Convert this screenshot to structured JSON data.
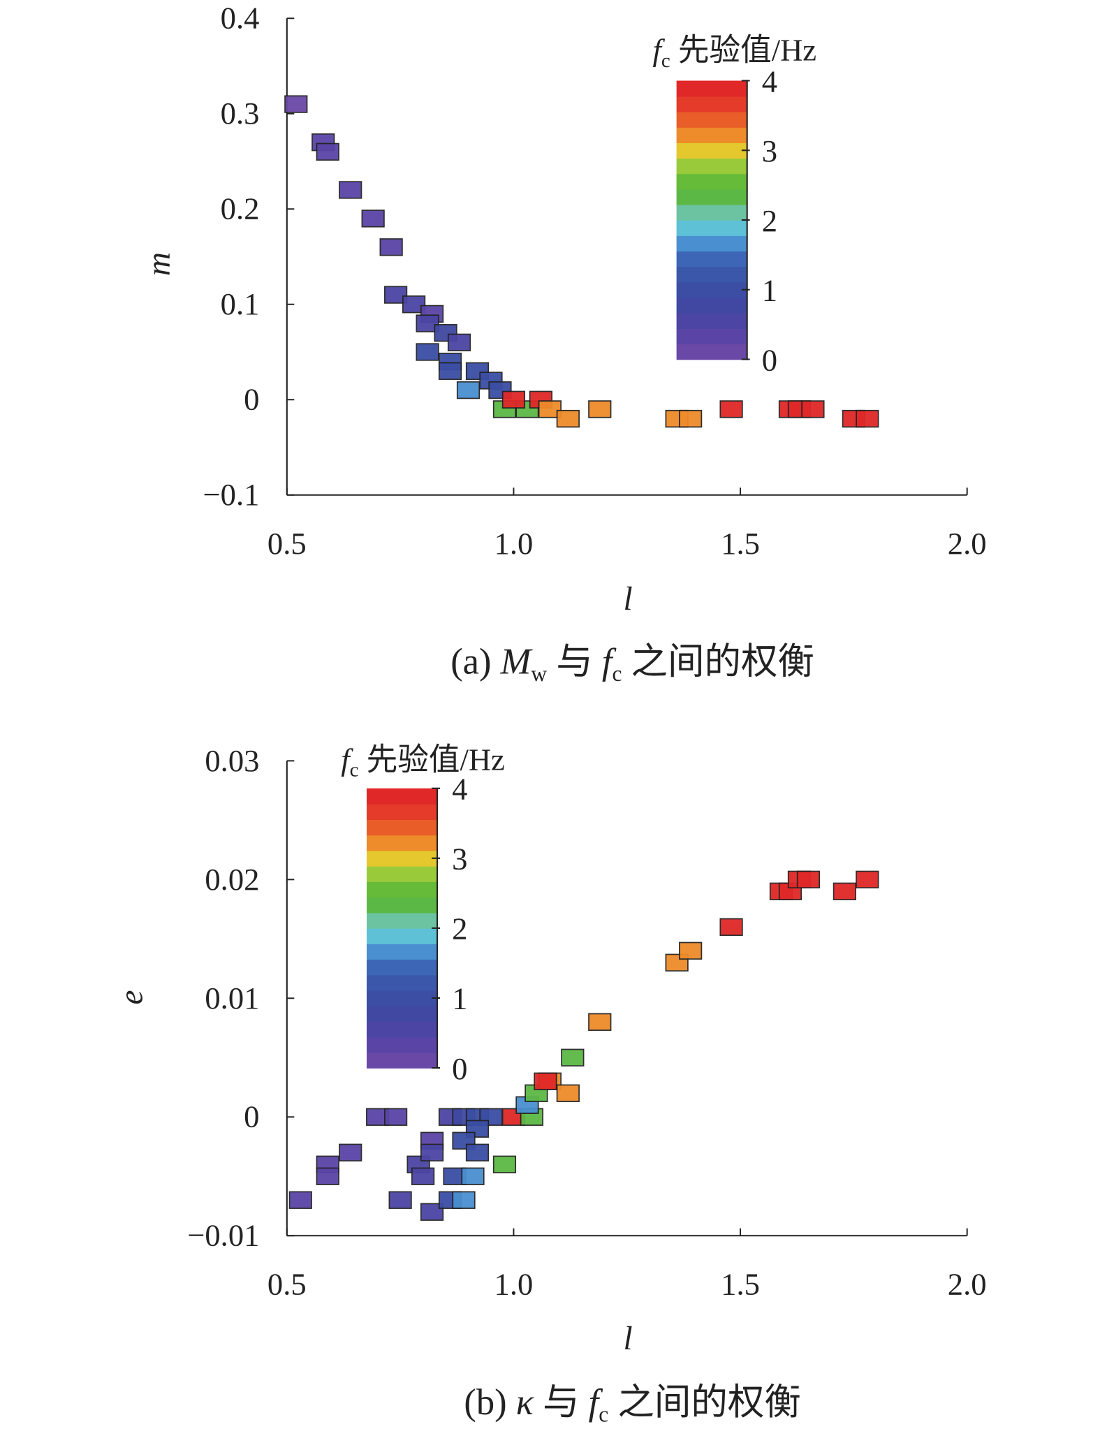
{
  "colorbar_colors": [
    "#6a48a6",
    "#5a45a6",
    "#4c45a4",
    "#4048a1",
    "#3b4ea4",
    "#3a57aa",
    "#3d66b6",
    "#4a8fd0",
    "#5ec1d6",
    "#6cc3a2",
    "#5cb845",
    "#66bb38",
    "#98ca3a",
    "#e4c82d",
    "#ee8b2a",
    "#e85d28",
    "#e43b2a",
    "#e02828"
  ],
  "chart_data": [
    {
      "type": "scatter",
      "panel": "a",
      "caption": {
        "prefix": "(a) ",
        "var1": "M",
        "var1_sub": "w",
        "mid": " 与 ",
        "var2": "f",
        "var2_sub": "c",
        "suffix": " 之间的权衡"
      },
      "xlabel": "l",
      "ylabel": "m",
      "xlim": [
        0.5,
        2.0
      ],
      "ylim": [
        -0.1,
        0.4
      ],
      "xticks": [
        "0.5",
        "1.0",
        "1.5",
        "2.0"
      ],
      "xtick_values": [
        0.5,
        1.0,
        1.5,
        2.0
      ],
      "yticks": [
        "−0.1",
        "0",
        "0.1",
        "0.2",
        "0.3",
        "0.4"
      ],
      "ytick_values": [
        -0.1,
        0,
        0.1,
        0.2,
        0.3,
        0.4
      ],
      "colorbar": {
        "title_var": "f",
        "title_sub": "c",
        "title_text": " 先验值/Hz",
        "ticks": [
          "0",
          "1",
          "2",
          "3",
          "4"
        ],
        "tick_values": [
          0,
          1,
          2,
          3,
          4
        ],
        "range": [
          0,
          4
        ],
        "position": "top-right"
      },
      "points_l_y_fc": [
        [
          0.52,
          0.31,
          0.2
        ],
        [
          0.58,
          0.27,
          0.3
        ],
        [
          0.59,
          0.26,
          0.3
        ],
        [
          0.64,
          0.22,
          0.3
        ],
        [
          0.69,
          0.19,
          0.3
        ],
        [
          0.73,
          0.16,
          0.3
        ],
        [
          0.74,
          0.11,
          0.5
        ],
        [
          0.78,
          0.1,
          0.6
        ],
        [
          0.82,
          0.09,
          0.4
        ],
        [
          0.81,
          0.08,
          0.6
        ],
        [
          0.85,
          0.07,
          0.7
        ],
        [
          0.88,
          0.06,
          0.5
        ],
        [
          0.81,
          0.05,
          0.9
        ],
        [
          0.86,
          0.04,
          0.9
        ],
        [
          0.86,
          0.03,
          1.1
        ],
        [
          0.92,
          0.03,
          0.9
        ],
        [
          0.95,
          0.02,
          1.0
        ],
        [
          0.9,
          0.01,
          1.7
        ],
        [
          0.97,
          0.01,
          1.0
        ],
        [
          0.98,
          -0.01,
          2.4
        ],
        [
          1.03,
          -0.01,
          2.4
        ],
        [
          1.0,
          0.0,
          3.9
        ],
        [
          1.06,
          0.0,
          3.9
        ],
        [
          1.08,
          -0.01,
          3.2
        ],
        [
          1.12,
          -0.02,
          3.2
        ],
        [
          1.19,
          -0.01,
          3.3
        ],
        [
          1.36,
          -0.02,
          3.3
        ],
        [
          1.39,
          -0.02,
          3.3
        ],
        [
          1.48,
          -0.01,
          3.9
        ],
        [
          1.61,
          -0.01,
          3.9
        ],
        [
          1.63,
          -0.01,
          3.9
        ],
        [
          1.66,
          -0.01,
          3.9
        ],
        [
          1.75,
          -0.02,
          3.9
        ],
        [
          1.78,
          -0.02,
          3.9
        ]
      ]
    },
    {
      "type": "scatter",
      "panel": "b",
      "caption": {
        "prefix": "(b) ",
        "var1": "κ",
        "var1_sub": "",
        "mid": " 与 ",
        "var2": "f",
        "var2_sub": "c",
        "suffix": " 之间的权衡"
      },
      "xlabel": "l",
      "ylabel": "e",
      "xlim": [
        0.5,
        2.0
      ],
      "ylim": [
        -0.01,
        0.03
      ],
      "xticks": [
        "0.5",
        "1.0",
        "1.5",
        "2.0"
      ],
      "xtick_values": [
        0.5,
        1.0,
        1.5,
        2.0
      ],
      "yticks": [
        "−0.01",
        "0",
        "0.01",
        "0.02",
        "0.03"
      ],
      "ytick_values": [
        -0.01,
        0,
        0.01,
        0.02,
        0.03
      ],
      "colorbar": {
        "title_var": "f",
        "title_sub": "c",
        "title_text": " 先验值/Hz",
        "ticks": [
          "0",
          "1",
          "2",
          "3",
          "4"
        ],
        "tick_values": [
          0,
          1,
          2,
          3,
          4
        ],
        "range": [
          0,
          4
        ],
        "position": "top-left"
      },
      "points_l_y_fc": [
        [
          0.53,
          -0.007,
          0.3
        ],
        [
          0.59,
          -0.004,
          0.3
        ],
        [
          0.59,
          -0.005,
          0.3
        ],
        [
          0.64,
          -0.003,
          0.3
        ],
        [
          0.7,
          0.0,
          0.3
        ],
        [
          0.74,
          0.0,
          0.3
        ],
        [
          0.75,
          -0.007,
          0.5
        ],
        [
          0.79,
          -0.004,
          0.5
        ],
        [
          0.8,
          -0.005,
          0.6
        ],
        [
          0.82,
          -0.008,
          0.5
        ],
        [
          0.82,
          -0.002,
          0.4
        ],
        [
          0.82,
          -0.003,
          0.6
        ],
        [
          0.86,
          0.0,
          0.6
        ],
        [
          0.89,
          0.0,
          0.8
        ],
        [
          0.92,
          0.0,
          1.0
        ],
        [
          0.95,
          0.0,
          1.1
        ],
        [
          0.92,
          -0.001,
          1.0
        ],
        [
          0.89,
          -0.002,
          0.9
        ],
        [
          0.92,
          -0.003,
          1.1
        ],
        [
          0.87,
          -0.005,
          1.1
        ],
        [
          0.91,
          -0.005,
          1.7
        ],
        [
          0.86,
          -0.007,
          1.1
        ],
        [
          0.89,
          -0.007,
          1.7
        ],
        [
          0.98,
          -0.004,
          2.4
        ],
        [
          1.0,
          0.0,
          3.9
        ],
        [
          1.04,
          0.0,
          2.4
        ],
        [
          1.03,
          0.001,
          1.7
        ],
        [
          1.05,
          0.002,
          2.4
        ],
        [
          1.08,
          0.003,
          3.3
        ],
        [
          1.07,
          0.003,
          3.9
        ],
        [
          1.12,
          0.002,
          3.3
        ],
        [
          1.13,
          0.005,
          2.4
        ],
        [
          1.19,
          0.008,
          3.3
        ],
        [
          1.36,
          0.013,
          3.3
        ],
        [
          1.39,
          0.014,
          3.3
        ],
        [
          1.48,
          0.016,
          3.9
        ],
        [
          1.59,
          0.019,
          3.9
        ],
        [
          1.61,
          0.019,
          3.9
        ],
        [
          1.63,
          0.02,
          3.9
        ],
        [
          1.65,
          0.02,
          3.9
        ],
        [
          1.73,
          0.019,
          3.9
        ],
        [
          1.78,
          0.02,
          3.9
        ]
      ]
    }
  ]
}
